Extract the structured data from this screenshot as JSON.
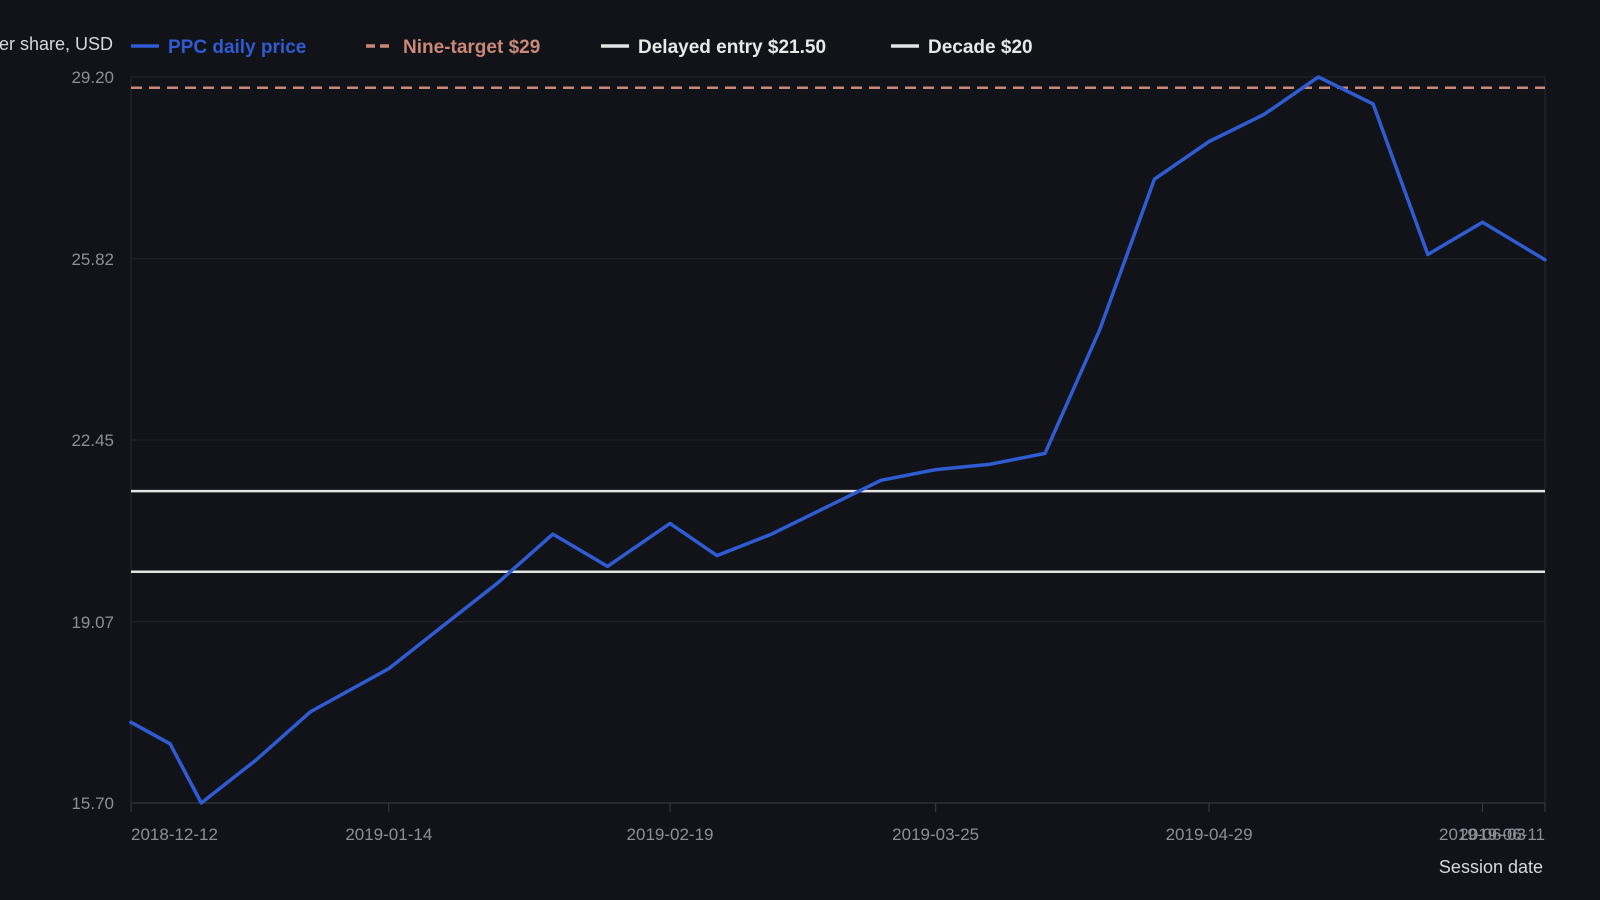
{
  "chart_data": {
    "type": "line",
    "title": "",
    "xlabel": "Session date",
    "ylabel": "Price per share, USD",
    "ylim": [
      15.7,
      29.2
    ],
    "y_ticks": [
      "29.20",
      "25.82",
      "22.45",
      "19.07",
      "15.70"
    ],
    "x_range": [
      "2018-12-12",
      "2019-06-11"
    ],
    "x_ticks": [
      "2018-12-12",
      "2019-01-14",
      "2019-02-19",
      "2019-03-25",
      "2019-04-29",
      "2019-06-03",
      "2019-06-11"
    ],
    "grid": true,
    "legend_position": "top",
    "series": [
      {
        "name": "PPC daily price",
        "color": "#2f5bd3",
        "style": "solid",
        "points": [
          [
            "2018-12-12",
            17.2
          ],
          [
            "2018-12-17",
            16.8
          ],
          [
            "2018-12-21",
            15.7
          ],
          [
            "2018-12-28",
            16.5
          ],
          [
            "2019-01-04",
            17.4
          ],
          [
            "2019-01-14",
            18.2
          ],
          [
            "2019-01-21",
            19.0
          ],
          [
            "2019-01-28",
            19.8
          ],
          [
            "2019-02-04",
            20.7
          ],
          [
            "2019-02-11",
            20.1
          ],
          [
            "2019-02-19",
            20.9
          ],
          [
            "2019-02-25",
            20.3
          ],
          [
            "2019-03-04",
            20.7
          ],
          [
            "2019-03-11",
            21.2
          ],
          [
            "2019-03-18",
            21.7
          ],
          [
            "2019-03-25",
            21.9
          ],
          [
            "2019-04-01",
            22.0
          ],
          [
            "2019-04-08",
            22.2
          ],
          [
            "2019-04-15",
            24.5
          ],
          [
            "2019-04-22",
            27.3
          ],
          [
            "2019-04-29",
            28.0
          ],
          [
            "2019-05-06",
            28.5
          ],
          [
            "2019-05-13",
            29.2
          ],
          [
            "2019-05-20",
            28.7
          ],
          [
            "2019-05-27",
            25.9
          ],
          [
            "2019-06-03",
            26.5
          ],
          [
            "2019-06-11",
            25.8
          ]
        ]
      },
      {
        "name": "Nine-target $29",
        "color": "#c98878",
        "style": "dashed",
        "value": 29.0
      },
      {
        "name": "Delayed entry $21.50",
        "color": "#e4e4e4",
        "style": "solid",
        "value": 21.5
      },
      {
        "name": "Decade $20",
        "color": "#e4e4e4",
        "style": "solid",
        "value": 20.0
      }
    ]
  }
}
